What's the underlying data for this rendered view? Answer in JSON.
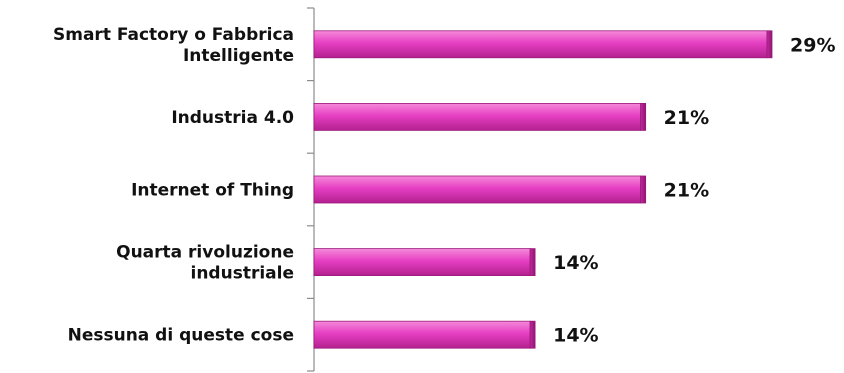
{
  "chart_data": {
    "type": "bar",
    "orientation": "horizontal",
    "title": "",
    "xlabel": "",
    "ylabel": "",
    "categories": [
      [
        "Smart Factory o Fabbrica",
        "Intelligente"
      ],
      [
        "Industria 4.0"
      ],
      [
        "Internet of Thing"
      ],
      [
        "Quarta rivoluzione",
        "industriale"
      ],
      [
        "Nessuna di queste cose"
      ]
    ],
    "values": [
      29,
      21,
      21,
      14,
      14
    ],
    "value_labels": [
      "29%",
      "21%",
      "21%",
      "14%",
      "14%"
    ],
    "xlim": [
      0,
      29
    ],
    "grid": false,
    "legend": "none",
    "colors": {
      "bar_light": "#f58ad9",
      "bar_main": "#e63fc3",
      "bar_dark": "#b3208f",
      "bar_edge": "#9c1a7d",
      "axis": "#8c8c8c"
    }
  }
}
